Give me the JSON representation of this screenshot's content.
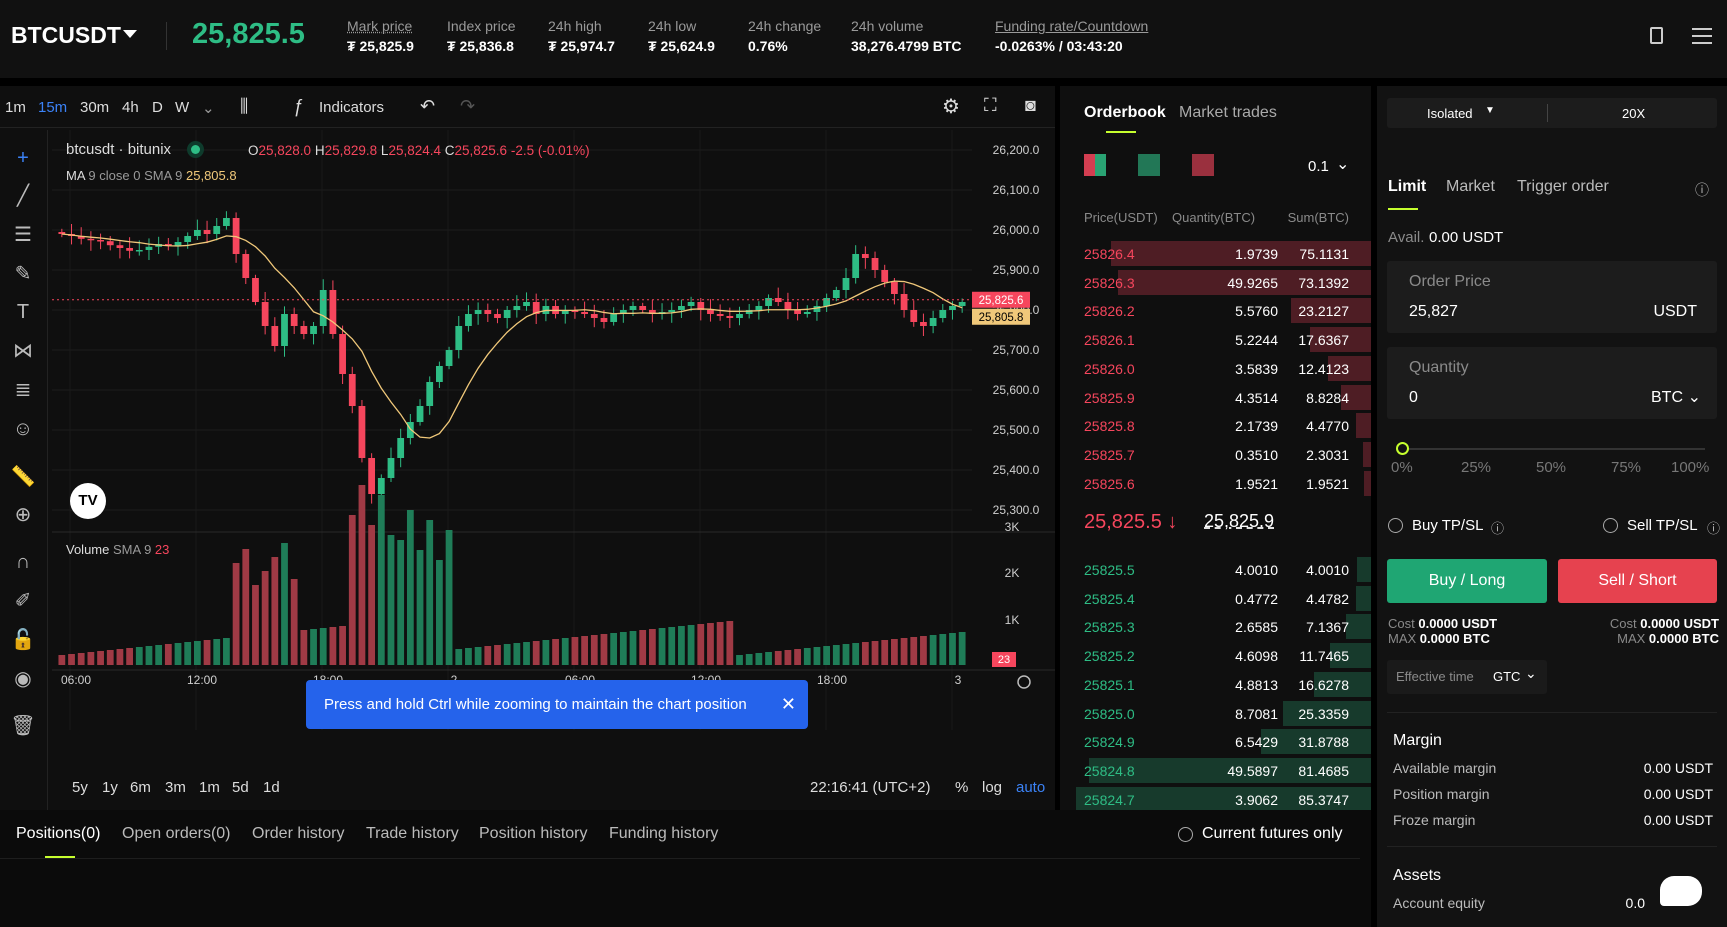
{
  "header": {
    "symbol": "BTCUSDT",
    "last_price": "25,825.5",
    "stats": [
      {
        "label": "Mark price",
        "value": "₮ 25,825.9"
      },
      {
        "label": "Index price",
        "value": "₮ 25,836.8"
      },
      {
        "label": "24h high",
        "value": "₮ 25,974.7"
      },
      {
        "label": "24h low",
        "value": "₮ 25,624.9"
      },
      {
        "label": "24h change",
        "value": "0.76%"
      },
      {
        "label": "24h volume",
        "value": "38,276.4799 BTC"
      },
      {
        "label": "Funding rate/Countdown",
        "value_neg": "-0.0263%",
        "value_rest": " / 03:43:20"
      }
    ]
  },
  "toolbar": {
    "timeframes": [
      "1m",
      "15m",
      "30m",
      "4h",
      "D",
      "W"
    ],
    "active": "15m",
    "indicators": "Indicators"
  },
  "chart": {
    "name": "btcusdt · bitunix",
    "ohlc": {
      "o": "25,828.0",
      "h": "25,829.8",
      "l": "25,824.4",
      "c": "25,825.6",
      "chg": "-2.5 (-0.01%)"
    },
    "ma_label": "MA",
    "ma_params": "9 close 0 SMA 9",
    "ma_value": "25,805.8",
    "vol_label": "Volume",
    "vol_params": "SMA 9",
    "vol_value": "23",
    "price_ticks": [
      "26,200.0",
      "26,100.0",
      "26,000.0",
      "25,900.0",
      "25,800.0",
      "25,700.0",
      "25,600.0",
      "25,500.0",
      "25,400.0",
      "25,300.0"
    ],
    "last_tag": "25,825.6",
    "ma_tag": "25,805.8",
    "vol_ticks": [
      "3K",
      "2K",
      "1K"
    ],
    "vol_tag": "23",
    "time_ticks": [
      "06:00",
      "12:00",
      "18:00",
      "2",
      "06:00",
      "12:00",
      "18:00",
      "3"
    ],
    "ranges": [
      "5y",
      "1y",
      "6m",
      "3m",
      "1m",
      "5d",
      "1d"
    ],
    "clock": "22:16:41 (UTC+2)",
    "pct": "%",
    "log": "log",
    "auto": "auto",
    "toast": "Press and hold Ctrl while zooming to maintain the chart position",
    "colors": {
      "up": "#2ebd85",
      "down": "#f6465d",
      "ma": "#f0c87a"
    }
  },
  "chart_data": {
    "type": "candlestick",
    "ylim": [
      25250,
      26250
    ],
    "price_axis_ticks": [
      26200,
      26100,
      26000,
      25900,
      25800,
      25700,
      25600,
      25500,
      25400,
      25300
    ],
    "time_axis": [
      "06:00",
      "12:00",
      "18:00",
      "2",
      "06:00",
      "12:00",
      "18:00",
      "3"
    ]
  },
  "orderbook": {
    "tabs": [
      "Orderbook",
      "Market trades"
    ],
    "precision": "0.1",
    "headers": [
      "Price(USDT)",
      "Quantity(BTC)",
      "Sum(BTC)"
    ],
    "asks": [
      [
        "25826.4",
        "1.9739",
        "75.1131"
      ],
      [
        "25826.3",
        "49.9265",
        "73.1392"
      ],
      [
        "25826.2",
        "5.5760",
        "23.2127"
      ],
      [
        "25826.1",
        "5.2244",
        "17.6367"
      ],
      [
        "25826.0",
        "3.5839",
        "12.4123"
      ],
      [
        "25825.9",
        "4.3514",
        "8.8284"
      ],
      [
        "25825.8",
        "2.1739",
        "4.4770"
      ],
      [
        "25825.7",
        "0.3510",
        "2.3031"
      ],
      [
        "25825.6",
        "1.9521",
        "1.9521"
      ]
    ],
    "mid": "25,825.5 ↓",
    "mark": "25,825.9",
    "bids": [
      [
        "25825.5",
        "4.0010",
        "4.0010"
      ],
      [
        "25825.4",
        "0.4772",
        "4.4782"
      ],
      [
        "25825.3",
        "2.6585",
        "7.1367"
      ],
      [
        "25825.2",
        "4.6098",
        "11.7465"
      ],
      [
        "25825.1",
        "4.8813",
        "16.6278"
      ],
      [
        "25825.0",
        "8.7081",
        "25.3359"
      ],
      [
        "25824.9",
        "6.5429",
        "31.8788"
      ],
      [
        "25824.8",
        "49.5897",
        "81.4685"
      ],
      [
        "25824.7",
        "3.9062",
        "85.3747"
      ]
    ]
  },
  "trade": {
    "margin_mode": "Isolated",
    "leverage": "20X",
    "tabs": [
      "Limit",
      "Market",
      "Trigger order"
    ],
    "avail_label": "Avail.",
    "avail": "0.00 USDT",
    "order_price_label": "Order Price",
    "order_price": "25,827",
    "order_price_unit": "USDT",
    "qty_label": "Quantity",
    "qty": "0",
    "qty_unit": "BTC",
    "slider": [
      "0%",
      "25%",
      "50%",
      "75%",
      "100%"
    ],
    "buy_tpsl": "Buy TP/SL",
    "sell_tpsl": "Sell TP/SL",
    "buy": "Buy / Long",
    "sell": "Sell / Short",
    "cost_label": "Cost",
    "cost_buy": "0.0000 USDT",
    "cost_sell": "0.0000 USDT",
    "max_label": "MAX",
    "max_buy": "0.0000 BTC",
    "max_sell": "0.0000 BTC",
    "eff_label": "Effective time",
    "eff": "GTC",
    "margin_title": "Margin",
    "margin_rows": [
      [
        "Available margin",
        "0.00 USDT"
      ],
      [
        "Position margin",
        "0.00 USDT"
      ],
      [
        "Froze margin",
        "0.00 USDT"
      ]
    ],
    "assets_title": "Assets",
    "equity_label": "Account equity",
    "equity": "0.0"
  },
  "bottom": {
    "tabs": [
      "Positions(0)",
      "Open orders(0)",
      "Order history",
      "Trade history",
      "Position history",
      "Funding history"
    ],
    "toggle": "Current futures only"
  }
}
